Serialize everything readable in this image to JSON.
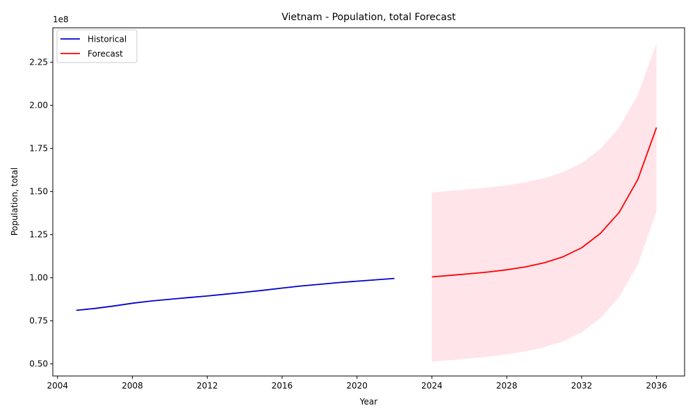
{
  "chart_data": {
    "type": "line",
    "title": "Vietnam - Population, total Forecast",
    "xlabel": "Year",
    "ylabel": "Population, total",
    "y_offset_label": "1e8",
    "xlim": [
      2003.75,
      2037.5
    ],
    "ylim": [
      0.43,
      2.45
    ],
    "y_unit_multiplier": 100000000,
    "x_ticks": [
      2004,
      2008,
      2012,
      2016,
      2020,
      2024,
      2028,
      2032,
      2036
    ],
    "y_ticks": [
      0.5,
      0.75,
      1.0,
      1.25,
      1.5,
      1.75,
      2.0,
      2.25
    ],
    "y_tick_labels": [
      "0.50",
      "0.75",
      "1.00",
      "1.25",
      "1.50",
      "1.75",
      "2.00",
      "2.25"
    ],
    "legend": {
      "position": "top-left",
      "entries": [
        "Historical",
        "Forecast"
      ]
    },
    "grid": false,
    "series": [
      {
        "name": "Historical",
        "color": "#0000cd",
        "x": [
          2005,
          2006,
          2007,
          2008,
          2009,
          2010,
          2011,
          2012,
          2013,
          2014,
          2015,
          2016,
          2017,
          2018,
          2019,
          2020,
          2021,
          2022
        ],
        "y": [
          0.811,
          0.822,
          0.836,
          0.852,
          0.865,
          0.875,
          0.885,
          0.894,
          0.905,
          0.916,
          0.927,
          0.94,
          0.952,
          0.962,
          0.972,
          0.98,
          0.988,
          0.996
        ]
      },
      {
        "name": "Forecast",
        "color": "#ff0000",
        "x": [
          2024,
          2025,
          2026,
          2027,
          2028,
          2029,
          2030,
          2031,
          2032,
          2033,
          2034,
          2035,
          2036
        ],
        "y": [
          1.005,
          1.014,
          1.023,
          1.033,
          1.046,
          1.063,
          1.087,
          1.121,
          1.174,
          1.257,
          1.378,
          1.57,
          1.872
        ],
        "band": {
          "color": "#ffe4ea",
          "upper": [
            1.495,
            1.504,
            1.513,
            1.523,
            1.536,
            1.554,
            1.578,
            1.612,
            1.665,
            1.747,
            1.87,
            2.06,
            2.36
          ],
          "lower": [
            0.513,
            0.522,
            0.532,
            0.542,
            0.555,
            0.573,
            0.597,
            0.631,
            0.683,
            0.765,
            0.887,
            1.078,
            1.382
          ]
        }
      }
    ]
  }
}
